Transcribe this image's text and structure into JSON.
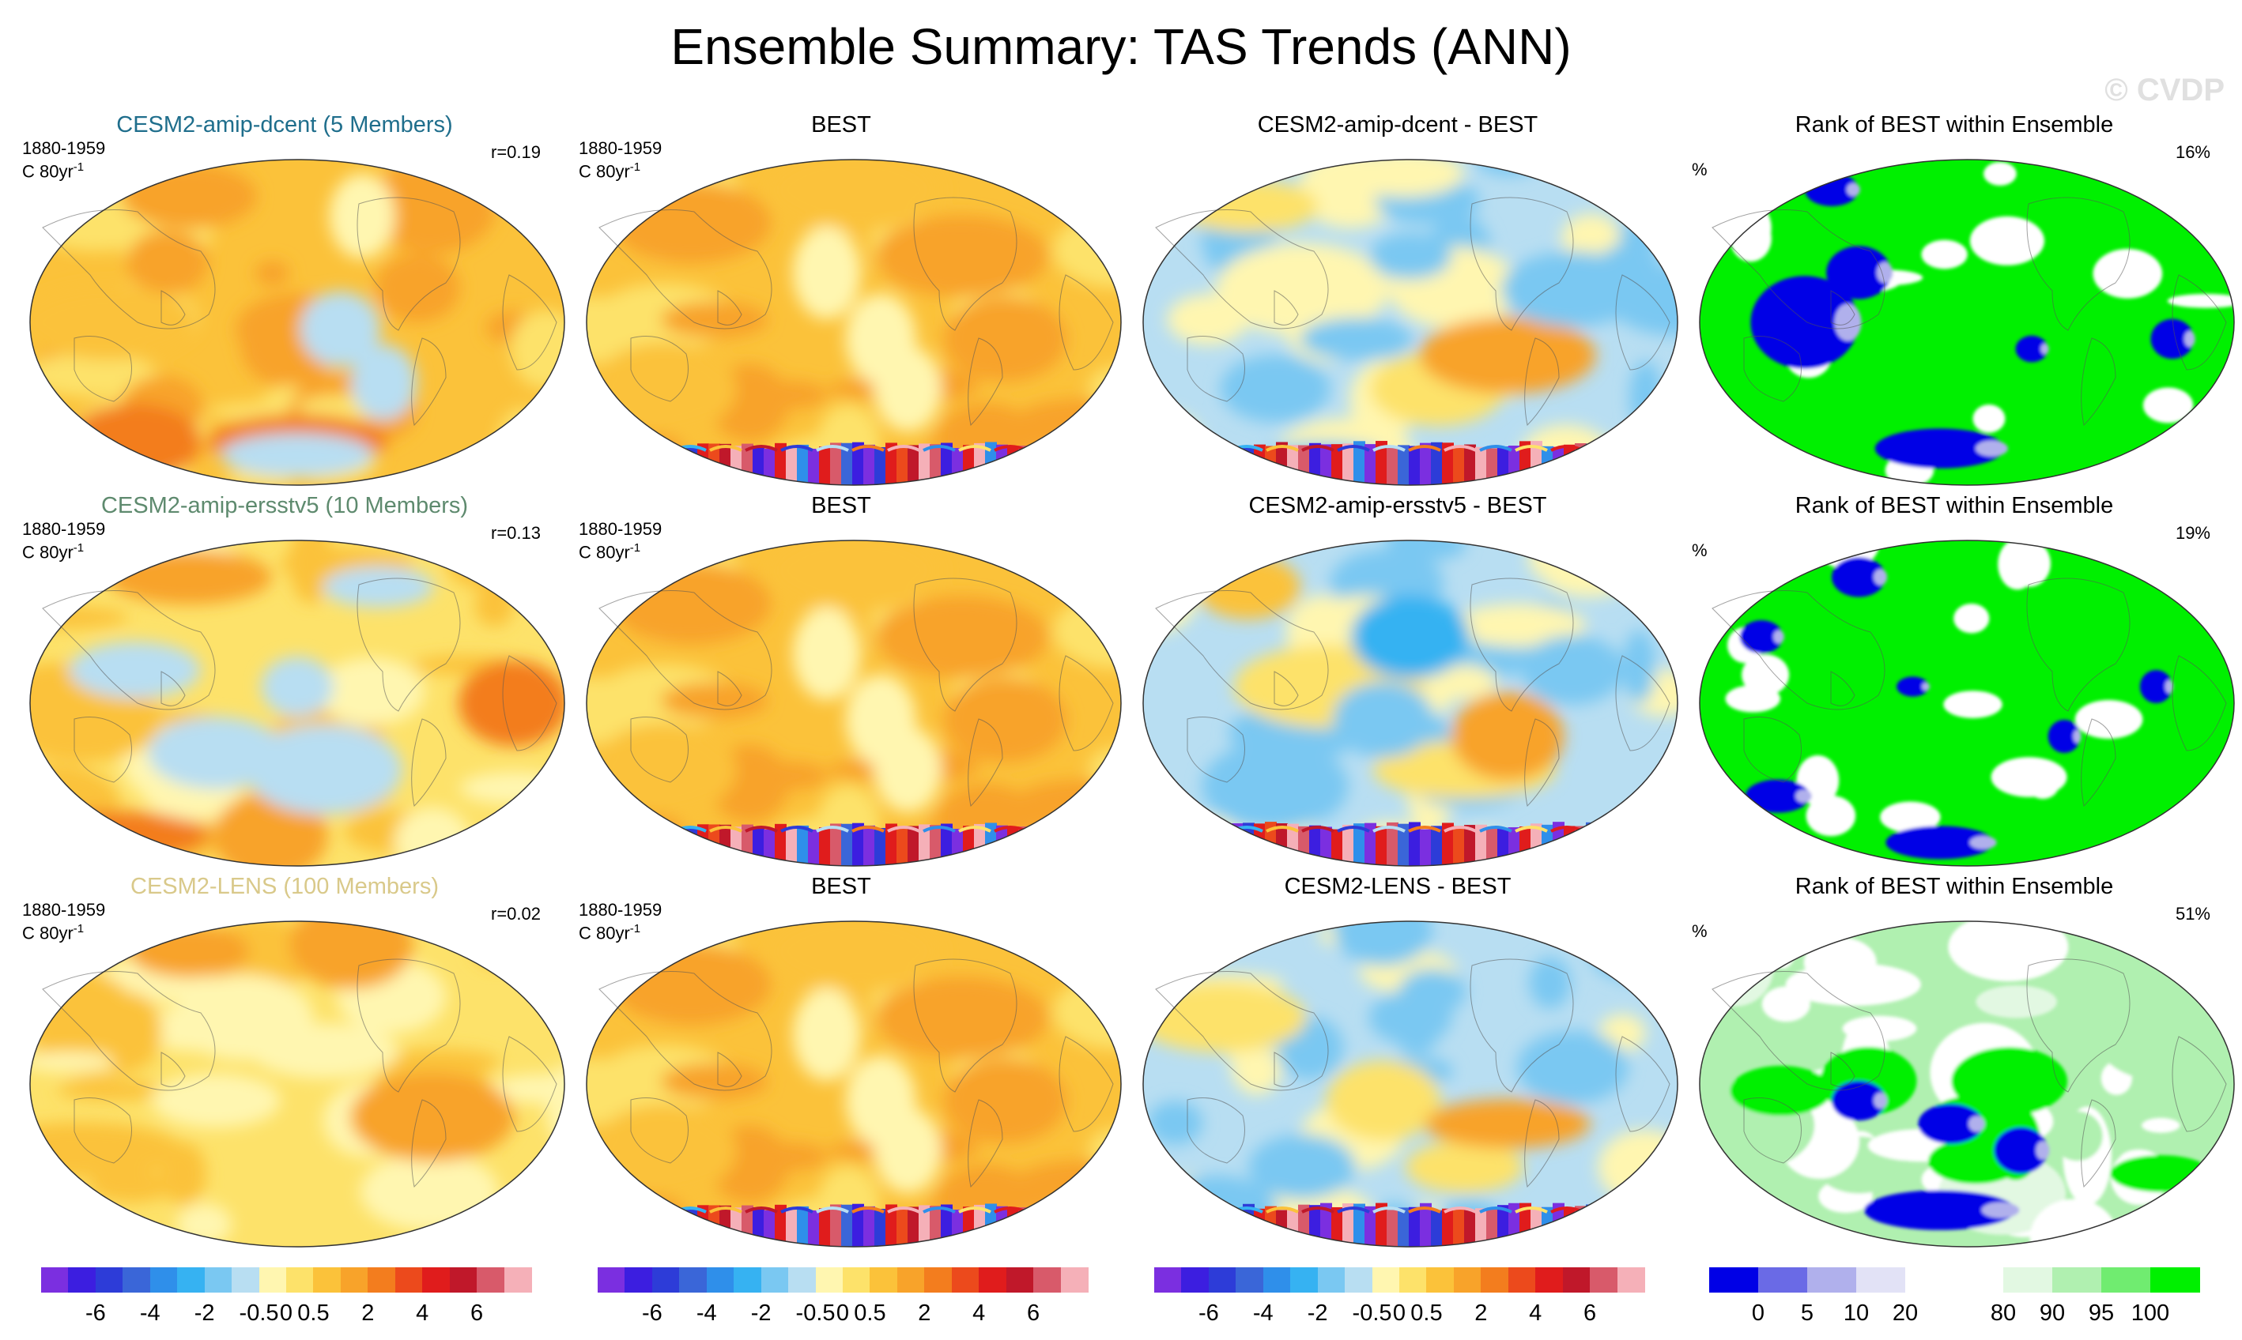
{
  "figure": {
    "title": "Ensemble Summary: TAS Trends (ANN)",
    "watermark": "© CVDP"
  },
  "rows": [
    {
      "model": {
        "title": "CESM2-amip-dcent (5 Members)",
        "title_color": "#1f6e8c",
        "period": "1880-1959",
        "units": "C 80yr",
        "units_sup": "-1",
        "corr": "r=0.19",
        "field": "model_a"
      },
      "obs": {
        "title": "BEST",
        "period": "1880-1959",
        "units": "C 80yr",
        "units_sup": "-1",
        "field": "obs"
      },
      "diff": {
        "title": "CESM2-amip-dcent - BEST",
        "field": "diff_a"
      },
      "rank": {
        "title": "Rank of BEST within Ensemble",
        "pct_label": "%",
        "value": "16%",
        "field": "rank_a"
      }
    },
    {
      "model": {
        "title": "CESM2-amip-ersstv5 (10 Members)",
        "title_color": "#5e8a6e",
        "period": "1880-1959",
        "units": "C 80yr",
        "units_sup": "-1",
        "corr": "r=0.13",
        "field": "model_b"
      },
      "obs": {
        "title": "BEST",
        "period": "1880-1959",
        "units": "C 80yr",
        "units_sup": "-1",
        "field": "obs"
      },
      "diff": {
        "title": "CESM2-amip-ersstv5 - BEST",
        "field": "diff_b"
      },
      "rank": {
        "title": "Rank of BEST within Ensemble",
        "pct_label": "%",
        "value": "19%",
        "field": "rank_b"
      }
    },
    {
      "model": {
        "title": "CESM2-LENS (100 Members)",
        "title_color": "#d9c98a",
        "period": "1880-1959",
        "units": "C 80yr",
        "units_sup": "-1",
        "corr": "r=0.02",
        "field": "model_c"
      },
      "obs": {
        "title": "BEST",
        "period": "1880-1959",
        "units": "C 80yr",
        "units_sup": "-1",
        "field": "obs"
      },
      "diff": {
        "title": "CESM2-LENS - BEST",
        "field": "diff_c"
      },
      "rank": {
        "title": "Rank of BEST within Ensemble",
        "pct_label": "%",
        "value": "51%",
        "field": "rank_c"
      }
    }
  ],
  "colorbars": {
    "trend": {
      "colors": [
        "#7b2fe0",
        "#3c1ee0",
        "#2d3cd8",
        "#3a66d8",
        "#2f8fea",
        "#36b2f2",
        "#7ac8f2",
        "#b8def2",
        "#fff6b0",
        "#fde26a",
        "#fbc23a",
        "#f8a32a",
        "#f37d1e",
        "#ec4a1c",
        "#e01c1c",
        "#c0182a",
        "#d85a6a",
        "#f5b0b8"
      ],
      "labels": [
        "-6",
        "-4",
        "-2",
        "-0.5",
        "0",
        "0.5",
        "2",
        "4",
        "6"
      ],
      "label_boundaries": [
        2,
        4,
        6,
        8,
        9,
        10,
        12,
        14,
        16
      ]
    },
    "rank": {
      "colors": [
        "#0000e6",
        "#6a6ae6",
        "#b0b0ec",
        "#e2e2f6",
        "#ffffff",
        "#ffffff",
        "#e2f8e2",
        "#b0f0b0",
        "#70ec70",
        "#00f000"
      ],
      "labels": [
        "0",
        "5",
        "10",
        "20",
        "80",
        "90",
        "95",
        "100"
      ],
      "label_boundaries": [
        1,
        2,
        3,
        4,
        6,
        7,
        8,
        9
      ]
    }
  }
}
